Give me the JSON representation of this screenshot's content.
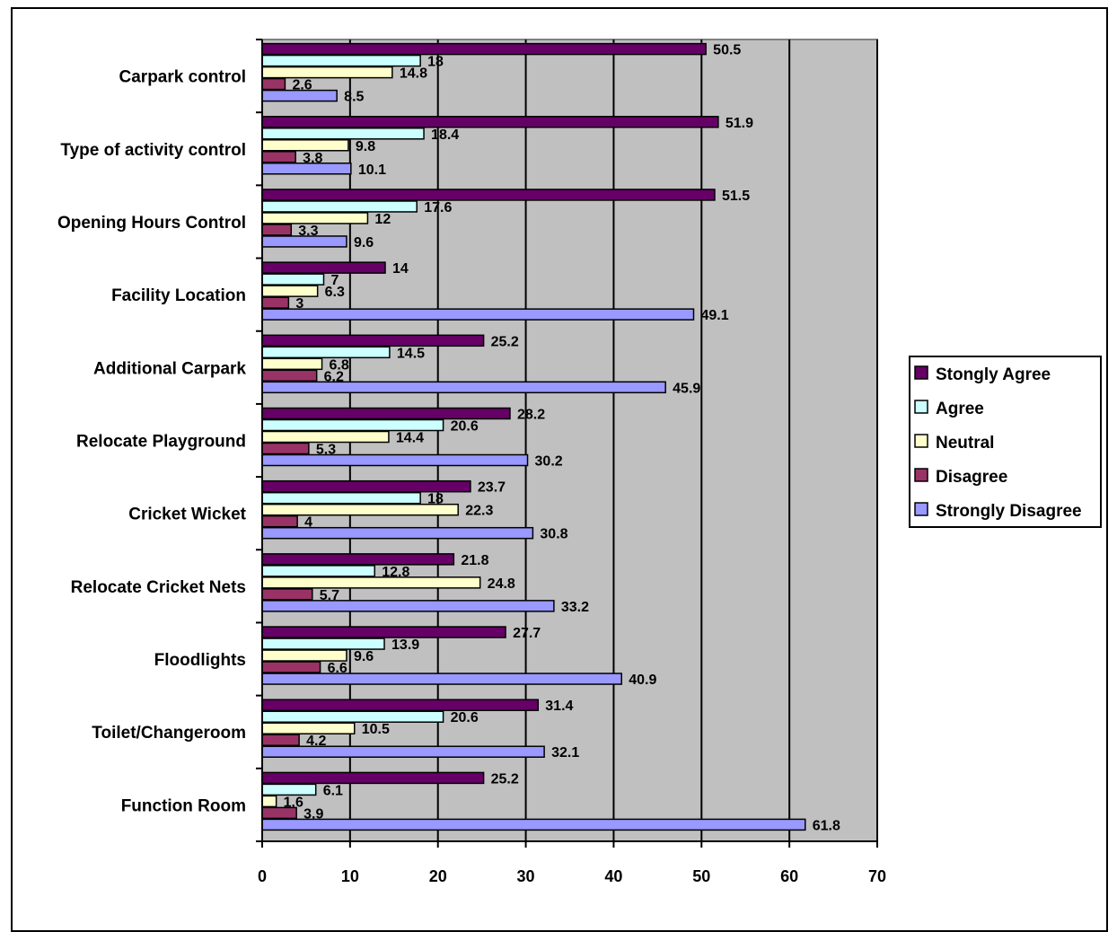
{
  "chart_data": {
    "type": "bar",
    "orientation": "horizontal",
    "categories": [
      "Carpark control",
      "Type of activity control",
      "Opening Hours Control",
      "Facility Location",
      "Additional Carpark",
      "Relocate Playground",
      "Cricket Wicket",
      "Relocate Cricket Nets",
      "Floodlights",
      "Toilet/Changeroom",
      "Function Room"
    ],
    "series": [
      {
        "name": "Stongly Agree",
        "color": "#660066",
        "values": [
          50.5,
          51.9,
          51.5,
          14,
          25.2,
          28.2,
          23.7,
          21.8,
          27.7,
          31.4,
          25.2
        ]
      },
      {
        "name": "Agree",
        "color": "#ccffff",
        "values": [
          18,
          18.4,
          17.6,
          7,
          14.5,
          20.6,
          18,
          12.8,
          13.9,
          20.6,
          6.1
        ]
      },
      {
        "name": "Neutral",
        "color": "#ffffcc",
        "values": [
          14.8,
          9.8,
          12,
          6.3,
          6.8,
          14.4,
          22.3,
          24.8,
          9.6,
          10.5,
          1.6
        ]
      },
      {
        "name": "Disagree",
        "color": "#993366",
        "values": [
          2.6,
          3.8,
          3.3,
          3,
          6.2,
          5.3,
          4,
          5.7,
          6.6,
          4.2,
          3.9
        ]
      },
      {
        "name": "Strongly Disagree",
        "color": "#9999ff",
        "values": [
          8.5,
          10.1,
          9.6,
          49.1,
          45.9,
          30.2,
          30.8,
          33.2,
          40.9,
          32.1,
          61.8
        ]
      }
    ],
    "value_labels": [
      [
        "50.5",
        "51.9",
        "51.5",
        "14",
        "25.2",
        "28.2",
        "23.7",
        "21.8",
        "27.7",
        "31.4",
        "25.2"
      ],
      [
        "18",
        "18.4",
        "17.6",
        "7",
        "14.5",
        "20.6",
        "18",
        "12.8",
        "13.9",
        "20.6",
        "6.1"
      ],
      [
        "14.8",
        "9.8",
        "12",
        "6.3",
        "6.8",
        "14.4",
        "22.3",
        "24.8",
        "9.6",
        "10.5",
        "1.6"
      ],
      [
        "2.6",
        "3.8",
        "3.3",
        "3",
        "6.2",
        "5.3",
        "4",
        "5.7",
        "6.6",
        "4.2",
        "3.9"
      ],
      [
        "8.5",
        "10.1",
        "9.6",
        "49.1",
        "45.9",
        "30.2",
        "30.8",
        "33.2",
        "40.9",
        "32.1",
        "61.8"
      ]
    ],
    "x_ticks": [
      "0",
      "10",
      "20",
      "30",
      "40",
      "50",
      "60",
      "70"
    ],
    "xlim": [
      0,
      70
    ],
    "title": "",
    "xlabel": "",
    "ylabel": "",
    "grid": "vertical major gridlines",
    "plot_background": "#c0c0c0",
    "legend_position": "right"
  }
}
